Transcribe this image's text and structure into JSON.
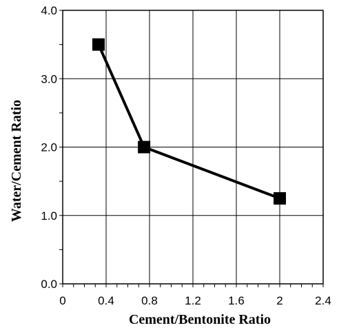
{
  "chart_data": {
    "type": "line",
    "title": "",
    "xlabel": "Cement/Bentonite Ratio",
    "ylabel": "Water/Cement Ratio",
    "xlim": [
      0,
      2.4
    ],
    "ylim": [
      0.0,
      4.0
    ],
    "x_ticks": [
      "0",
      "0.4",
      "0.8",
      "1.2",
      "1.6",
      "2",
      "2.4"
    ],
    "y_ticks": [
      "0.0",
      "1.0",
      "2.0",
      "3.0",
      "4.0"
    ],
    "x_tick_values": [
      0,
      0.4,
      0.8,
      1.2,
      1.6,
      2.0,
      2.4
    ],
    "y_tick_values": [
      0,
      1,
      2,
      3,
      4
    ],
    "grid": true,
    "marker": "square",
    "series": [
      {
        "x": [
          0.33,
          0.75,
          2.0
        ],
        "y": [
          3.5,
          2.0,
          1.25
        ],
        "color": "#000000"
      }
    ]
  }
}
